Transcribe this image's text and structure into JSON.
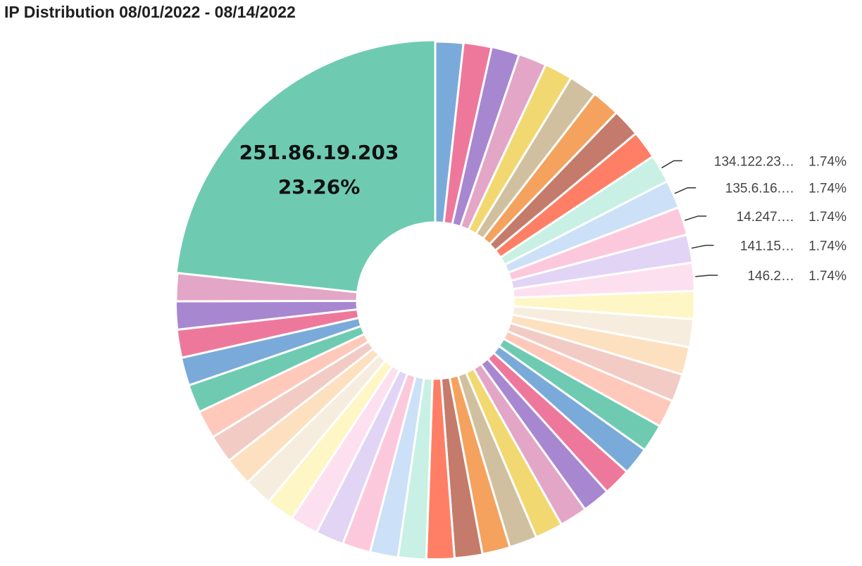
{
  "chart_data": {
    "type": "pie",
    "variant": "donut",
    "title": "IP Distribution 08/01/2022 - 08/14/2022",
    "highlight": {
      "label": "251.86.19.203",
      "value_label": "23.26%"
    },
    "slices": [
      {
        "label": "",
        "value": 1.74,
        "color": "#7aaad9"
      },
      {
        "label": "",
        "value": 1.74,
        "color": "#ee789c"
      },
      {
        "label": "",
        "value": 1.74,
        "color": "#a887d1"
      },
      {
        "label": "",
        "value": 1.74,
        "color": "#e3a6c6"
      },
      {
        "label": "",
        "value": 1.74,
        "color": "#f2d870"
      },
      {
        "label": "",
        "value": 1.74,
        "color": "#d1c09f"
      },
      {
        "label": "",
        "value": 1.74,
        "color": "#f4a25d"
      },
      {
        "label": "",
        "value": 1.74,
        "color": "#c47b6c"
      },
      {
        "label": "",
        "value": 1.74,
        "color": "#ff7f66"
      },
      {
        "label": "134.122.23…",
        "value": 1.74,
        "value_label": "1.74%",
        "color": "#c8f0e4"
      },
      {
        "label": "135.6.16.…",
        "value": 1.74,
        "value_label": "1.74%",
        "color": "#cce0f7"
      },
      {
        "label": "14.247.…",
        "value": 1.74,
        "value_label": "1.74%",
        "color": "#fcc9dc"
      },
      {
        "label": "141.15…",
        "value": 1.74,
        "value_label": "1.74%",
        "color": "#e2d4f5"
      },
      {
        "label": "146.2…",
        "value": 1.74,
        "value_label": "1.74%",
        "color": "#fde0ef"
      },
      {
        "label": "",
        "value": 1.74,
        "color": "#fff6c5"
      },
      {
        "label": "",
        "value": 1.74,
        "color": "#f6eddf"
      },
      {
        "label": "",
        "value": 1.74,
        "color": "#fde0bf"
      },
      {
        "label": "",
        "value": 1.74,
        "color": "#f2cbc5"
      },
      {
        "label": "",
        "value": 1.74,
        "color": "#fec9bb"
      },
      {
        "label": "",
        "value": 1.74,
        "color": "#6ecbb2"
      },
      {
        "label": "",
        "value": 1.74,
        "color": "#7aaad9"
      },
      {
        "label": "",
        "value": 1.74,
        "color": "#ee789c"
      },
      {
        "label": "",
        "value": 1.74,
        "color": "#a887d1"
      },
      {
        "label": "",
        "value": 1.74,
        "color": "#e3a6c6"
      },
      {
        "label": "",
        "value": 1.74,
        "color": "#f2d870"
      },
      {
        "label": "",
        "value": 1.74,
        "color": "#d1c09f"
      },
      {
        "label": "",
        "value": 1.74,
        "color": "#f4a25d"
      },
      {
        "label": "",
        "value": 1.74,
        "color": "#c47b6c"
      },
      {
        "label": "",
        "value": 1.74,
        "color": "#ff7f66"
      },
      {
        "label": "",
        "value": 1.74,
        "color": "#c8f0e4"
      },
      {
        "label": "",
        "value": 1.74,
        "color": "#cce0f7"
      },
      {
        "label": "",
        "value": 1.74,
        "color": "#fcc9dc"
      },
      {
        "label": "",
        "value": 1.74,
        "color": "#e2d4f5"
      },
      {
        "label": "",
        "value": 1.74,
        "color": "#fde0ef"
      },
      {
        "label": "",
        "value": 1.74,
        "color": "#fff6c5"
      },
      {
        "label": "",
        "value": 1.74,
        "color": "#f6eddf"
      },
      {
        "label": "",
        "value": 1.74,
        "color": "#fde0bf"
      },
      {
        "label": "",
        "value": 1.74,
        "color": "#f2cbc5"
      },
      {
        "label": "",
        "value": 1.74,
        "color": "#fec9bb"
      },
      {
        "label": "",
        "value": 1.74,
        "color": "#6ecbb2"
      },
      {
        "label": "",
        "value": 1.74,
        "color": "#7aaad9"
      },
      {
        "label": "",
        "value": 1.74,
        "color": "#ee789c"
      },
      {
        "label": "",
        "value": 1.74,
        "color": "#a887d1"
      },
      {
        "label": "",
        "value": 1.74,
        "color": "#e3a6c6"
      },
      {
        "label": "251.86.19.203",
        "value": 23.26,
        "value_label": "23.26%",
        "color": "#6ecbb2",
        "highlighted": true
      }
    ]
  }
}
